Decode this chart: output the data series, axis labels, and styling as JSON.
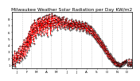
{
  "title": "Milwaukee Weather Solar Radiation per Day KW/m2",
  "xlim": [
    0,
    365
  ],
  "ylim": [
    0.5,
    9.0
  ],
  "yticks": [
    1,
    2,
    3,
    4,
    5,
    6,
    7,
    8
  ],
  "ytick_labels": [
    "1",
    "2",
    "3",
    "4",
    "5",
    "6",
    "7",
    "8"
  ],
  "line_color": "#ff0000",
  "dot_color": "#000000",
  "bg_color": "#ffffff",
  "grid_color": "#999999",
  "title_fontsize": 4.2,
  "tick_fontsize": 3.0,
  "line_width": 0.55,
  "marker_size": 0.7,
  "x_month_ticks": [
    0,
    31,
    59,
    90,
    120,
    151,
    181,
    212,
    243,
    273,
    304,
    334,
    365
  ],
  "x_month_labels": [
    "J",
    "F",
    "M",
    "A",
    "M",
    "J",
    "J",
    "A",
    "S",
    "O",
    "N",
    "D"
  ],
  "solar_data": [
    1.5,
    0.8,
    1.2,
    2.5,
    1.8,
    0.9,
    1.1,
    2.2,
    1.6,
    3.1,
    1.2,
    0.7,
    1.9,
    2.8,
    1.4,
    2.1,
    3.0,
    1.5,
    2.4,
    1.8,
    2.9,
    3.5,
    2.1,
    1.3,
    2.6,
    3.8,
    2.2,
    1.6,
    3.2,
    2.0,
    2.8,
    3.9,
    2.5,
    1.8,
    4.2,
    3.1,
    2.3,
    4.8,
    3.5,
    2.1,
    3.8,
    4.5,
    3.2,
    2.4,
    5.1,
    3.8,
    4.6,
    2.9,
    5.3,
    3.7,
    4.4,
    5.8,
    3.3,
    4.9,
    6.2,
    4.1,
    5.5,
    3.8,
    6.8,
    5.2,
    4.3,
    7.1,
    5.6,
    6.4,
    4.8,
    7.3,
    5.9,
    6.6,
    4.2,
    7.8,
    6.1,
    5.3,
    7.5,
    6.8,
    5.1,
    7.2,
    6.5,
    5.8,
    7.9,
    6.3,
    5.6,
    8.1,
    6.9,
    7.4,
    5.7,
    8.2,
    7.1,
    6.2,
    7.6,
    5.4,
    8.0,
    6.7,
    7.3,
    5.9,
    8.3,
    7.0,
    6.4,
    7.8,
    5.5,
    8.4,
    7.2,
    6.6,
    8.1,
    7.5,
    5.8,
    8.5,
    7.3,
    6.7,
    7.9,
    5.3,
    8.6,
    7.1,
    8.2,
    6.5,
    7.7,
    8.7,
    6.8,
    7.4,
    5.6,
    8.3,
    7.6,
    6.2,
    8.8,
    7.2,
    6.9,
    8.4,
    7.8,
    6.4,
    7.5,
    8.6,
    7.0,
    6.6,
    8.5,
    7.3,
    8.0,
    6.7,
    7.8,
    8.4,
    7.5,
    6.3,
    8.2,
    7.6,
    7.0,
    8.3,
    6.8,
    7.7,
    8.1,
    7.4,
    6.5,
    8.0,
    7.8,
    6.9,
    7.5,
    8.2,
    7.1,
    6.6,
    7.9,
    8.3,
    7.2,
    6.7,
    7.6,
    7.3,
    6.4,
    8.0,
    7.4,
    6.8,
    7.7,
    8.1,
    7.0,
    6.5,
    7.5,
    6.9,
    7.2,
    6.6,
    7.8,
    7.1,
    6.3,
    7.4,
    6.8,
    7.3,
    6.7,
    7.9,
    7.2,
    6.4,
    7.6,
    7.0,
    6.5,
    7.7,
    7.1,
    6.6,
    7.5,
    6.9,
    7.3,
    6.7,
    7.8,
    7.2,
    6.3,
    7.6,
    7.0,
    6.5,
    7.4,
    6.8,
    7.2,
    6.6,
    7.7,
    7.1,
    6.2,
    7.5,
    6.9,
    6.4,
    7.3,
    6.7,
    7.1,
    6.5,
    7.6,
    7.0,
    6.1,
    7.4,
    6.8,
    6.3,
    7.2,
    6.6,
    7.0,
    6.4,
    7.5,
    6.9,
    6.0,
    7.3,
    5.8,
    6.7,
    6.2,
    7.1,
    6.5,
    5.9,
    7.0,
    6.4,
    5.7,
    6.8,
    6.3,
    5.8,
    6.9,
    6.2,
    5.6,
    6.7,
    6.1,
    5.5,
    6.5,
    5.9,
    5.3,
    6.3,
    5.7,
    5.1,
    6.1,
    5.5,
    4.9,
    5.9,
    5.3,
    4.7,
    5.7,
    5.1,
    4.5,
    5.5,
    4.9,
    4.3,
    5.3,
    4.7,
    4.1,
    5.1,
    4.5,
    3.9,
    4.9,
    4.3,
    3.7,
    4.7,
    4.1,
    3.5,
    4.5,
    3.9,
    3.3,
    4.2,
    3.6,
    3.0,
    4.0,
    3.4,
    2.8,
    3.8,
    3.2,
    2.6,
    3.5,
    2.9,
    2.3,
    3.2,
    2.7,
    2.1,
    3.0,
    2.5,
    1.9,
    2.8,
    2.3,
    1.8,
    2.6,
    2.1,
    1.6,
    2.4,
    1.9,
    1.4,
    2.2,
    1.7,
    1.3,
    2.0,
    1.5,
    1.1,
    1.8,
    1.4,
    1.0,
    1.6,
    1.3,
    0.9,
    1.5,
    1.2,
    0.8,
    1.4,
    1.1,
    0.8,
    1.3,
    1.0,
    0.7,
    1.2,
    0.9,
    0.7,
    1.2,
    1.0,
    0.8,
    1.3,
    1.1,
    0.9,
    1.4,
    1.2,
    1.0,
    1.5,
    1.3,
    1.1,
    1.6,
    1.4,
    1.2,
    1.7,
    1.5,
    1.3,
    1.8,
    1.6,
    1.4,
    1.2,
    1.0,
    0.8,
    1.1,
    1.5,
    1.9,
    1.3,
    0.9,
    1.2,
    1.0,
    0.8,
    1.4,
    1.8,
    1.1,
    0.8,
    1.3,
    1.7,
    1.0
  ]
}
